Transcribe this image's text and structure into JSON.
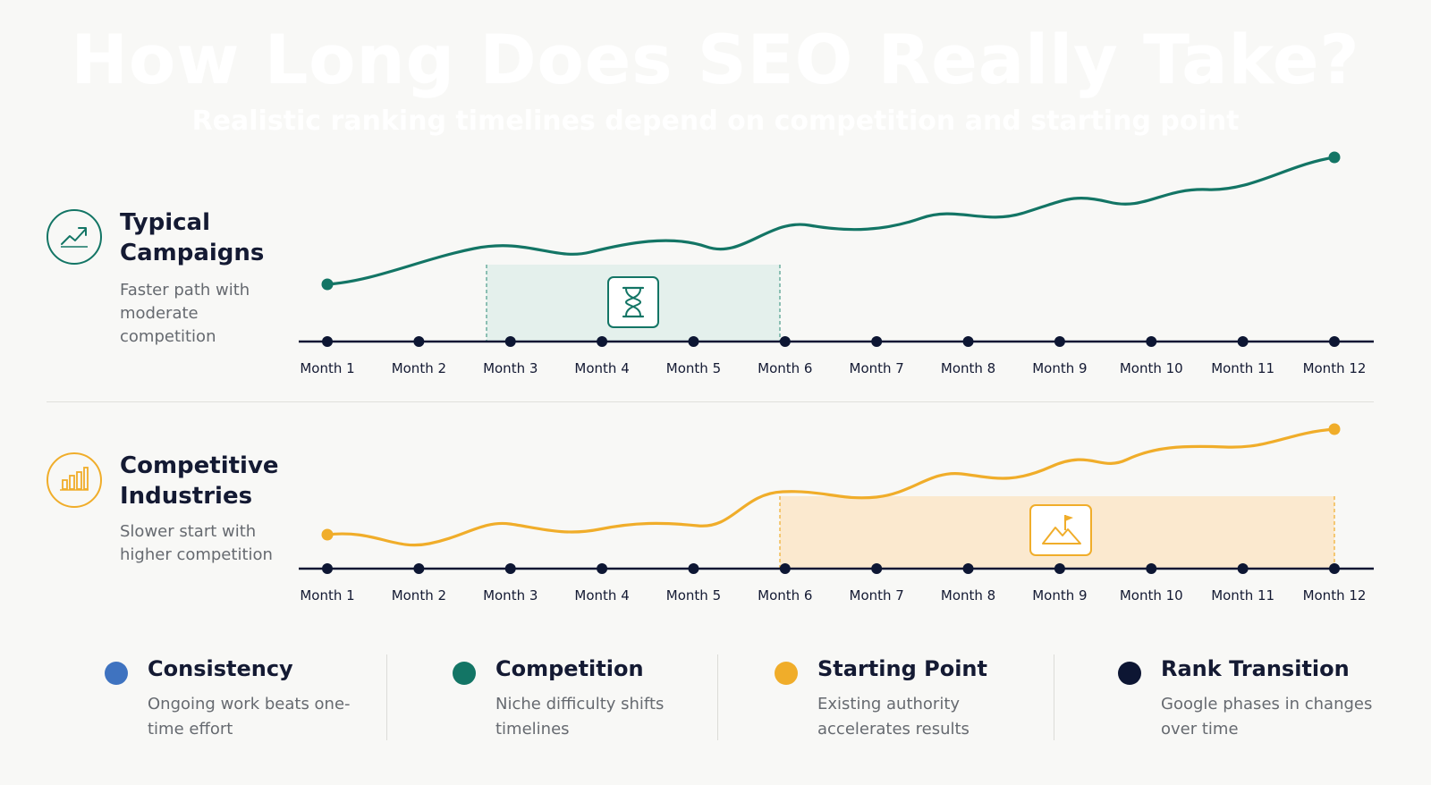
{
  "header": {
    "title": "How Long Does SEO Really Take?",
    "subtitle": "Realistic ranking timelines depend on competition and starting point"
  },
  "rows": [
    {
      "title": "Typical Campaigns",
      "description": "Faster path with moderate competition",
      "icon": "trend-up-icon",
      "color": "#137565",
      "highlight_start_month": 3,
      "highlight_end_month": 6,
      "highlight_icon": "hourglass-icon"
    },
    {
      "title": "Competitive Industries",
      "description": "Slower start with higher competition",
      "icon": "bar-chart-icon",
      "color": "#f0ad2a",
      "highlight_start_month": 6,
      "highlight_end_month": 12,
      "highlight_icon": "mountain-flag-icon"
    }
  ],
  "months": [
    "Month 1",
    "Month 2",
    "Month 3",
    "Month 4",
    "Month 5",
    "Month 6",
    "Month 7",
    "Month 8",
    "Month 9",
    "Month 10",
    "Month 11",
    "Month 12"
  ],
  "legend": [
    {
      "title": "Consistency",
      "description": "Ongoing work beats one-time effort",
      "color": "#3f73c0"
    },
    {
      "title": "Competition",
      "description": "Niche difficulty shifts timelines",
      "color": "#137565"
    },
    {
      "title": "Starting Point",
      "description": "Existing authority accelerates results",
      "color": "#f0ad2a"
    },
    {
      "title": "Rank Transition",
      "description": "Google phases in changes over time",
      "color": "#0d1633"
    }
  ]
}
